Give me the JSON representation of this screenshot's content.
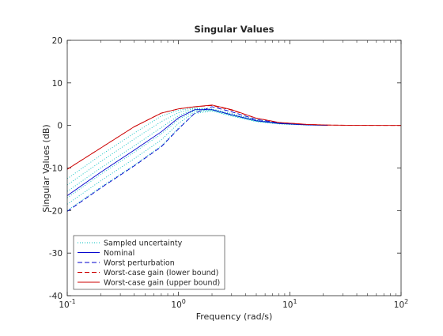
{
  "chart_data": {
    "type": "line",
    "title": "Singular Values",
    "xlabel": "Frequency (rad/s)",
    "ylabel": "Singular Values (dB)",
    "xscale": "log",
    "xlim": [
      0.1,
      100
    ],
    "ylim": [
      -40,
      20
    ],
    "x_ticks": [
      0.1,
      1,
      10,
      100
    ],
    "x_tick_labels": [
      {
        "base": "10",
        "exp": "-1"
      },
      {
        "base": "10",
        "exp": "0"
      },
      {
        "base": "10",
        "exp": "1"
      },
      {
        "base": "10",
        "exp": "2"
      }
    ],
    "y_ticks": [
      -40,
      -30,
      -20,
      -10,
      0,
      10,
      20
    ],
    "y_tick_labels": [
      "-40",
      "-30",
      "-20",
      "-10",
      "0",
      "10",
      "20"
    ],
    "grid": false,
    "legend_position": "bottom-left",
    "series": [
      {
        "name": "Sampled uncertainty",
        "color": "#00bfbf",
        "style": "dotted",
        "samples": [
          {
            "x": [
              0.1,
              0.2,
              0.4,
              0.7,
              1.0,
              1.4,
              2.0,
              3.0,
              5.0,
              8.0,
              14.0,
              22.0
            ],
            "y": [
              -12.5,
              -7.0,
              -1.8,
              2.2,
              3.6,
              4.1,
              3.9,
              2.8,
              1.3,
              0.5,
              0.2,
              0.05
            ]
          },
          {
            "x": [
              0.1,
              0.2,
              0.4,
              0.7,
              1.0,
              1.4,
              2.0,
              3.0,
              5.0,
              8.0,
              14.0,
              22.0
            ],
            "y": [
              -14.0,
              -8.5,
              -3.2,
              0.9,
              3.0,
              4.0,
              3.8,
              2.6,
              1.2,
              0.5,
              0.2,
              0.05
            ]
          },
          {
            "x": [
              0.1,
              0.2,
              0.4,
              0.7,
              1.0,
              1.4,
              2.0,
              3.0,
              5.0,
              8.0,
              14.0,
              22.0
            ],
            "y": [
              -15.5,
              -10.0,
              -4.8,
              -0.5,
              2.3,
              3.8,
              3.7,
              2.5,
              1.1,
              0.45,
              0.15,
              0.04
            ]
          },
          {
            "x": [
              0.1,
              0.2,
              0.4,
              0.7,
              1.0,
              1.4,
              2.0,
              3.0,
              5.0,
              8.0,
              14.0,
              22.0
            ],
            "y": [
              -17.0,
              -11.5,
              -6.3,
              -2.0,
              1.4,
              3.5,
              3.6,
              2.4,
              1.0,
              0.4,
              0.15,
              0.04
            ]
          },
          {
            "x": [
              0.1,
              0.2,
              0.4,
              0.7,
              1.0,
              1.4,
              2.0,
              3.0,
              5.0,
              8.0,
              14.0,
              22.0
            ],
            "y": [
              -18.5,
              -13.0,
              -7.8,
              -3.4,
              0.5,
              3.2,
              3.5,
              2.3,
              1.0,
              0.4,
              0.1,
              0.03
            ]
          },
          {
            "x": [
              0.1,
              0.2,
              0.4,
              0.7,
              1.0,
              1.4,
              2.0,
              3.0,
              5.0,
              8.0,
              14.0,
              22.0
            ],
            "y": [
              -20.0,
              -14.5,
              -9.3,
              -4.8,
              -0.6,
              2.8,
              3.4,
              2.2,
              0.9,
              0.35,
              0.1,
              0.03
            ]
          }
        ]
      },
      {
        "name": "Nominal",
        "color": "#0000cc",
        "style": "solid",
        "x": [
          0.1,
          0.2,
          0.4,
          0.7,
          1.0,
          1.4,
          2.0,
          3.0,
          5.0,
          8.0,
          14.0,
          22.0
        ],
        "y": [
          -16.5,
          -11.0,
          -5.8,
          -1.5,
          1.8,
          3.7,
          3.7,
          2.5,
          1.1,
          0.45,
          0.15,
          0.04
        ]
      },
      {
        "name": "Worst perturbation",
        "color": "#0000cc",
        "style": "dashed",
        "x": [
          0.1,
          0.2,
          0.4,
          0.7,
          1.0,
          1.4,
          2.0,
          3.0,
          5.0,
          8.0,
          14.0,
          22.0
        ],
        "y": [
          -20.2,
          -14.7,
          -9.5,
          -5.0,
          -0.8,
          2.9,
          4.4,
          3.2,
          1.4,
          0.6,
          0.2,
          0.05
        ]
      },
      {
        "name": "Worst-case gain (lower bound)",
        "color": "#cc0000",
        "style": "dashed",
        "x": [
          0.1,
          0.2,
          0.4,
          0.7,
          1.0,
          1.4,
          2.0,
          3.0,
          5.0,
          8.0,
          14.0,
          22.0,
          40.0,
          100.0
        ],
        "y": [
          -10.3,
          -5.3,
          -0.3,
          2.9,
          3.9,
          4.4,
          4.7,
          3.6,
          1.7,
          0.7,
          0.25,
          0.08,
          0.02,
          0.0
        ]
      },
      {
        "name": "Worst-case gain (upper bound)",
        "color": "#cc0000",
        "style": "solid",
        "x": [
          0.1,
          0.2,
          0.4,
          0.7,
          1.0,
          1.4,
          2.0,
          3.0,
          5.0,
          8.0,
          14.0,
          22.0,
          40.0,
          100.0
        ],
        "y": [
          -10.3,
          -5.3,
          -0.3,
          2.9,
          3.9,
          4.4,
          4.8,
          3.7,
          1.7,
          0.7,
          0.25,
          0.08,
          0.02,
          0.0
        ]
      }
    ]
  }
}
